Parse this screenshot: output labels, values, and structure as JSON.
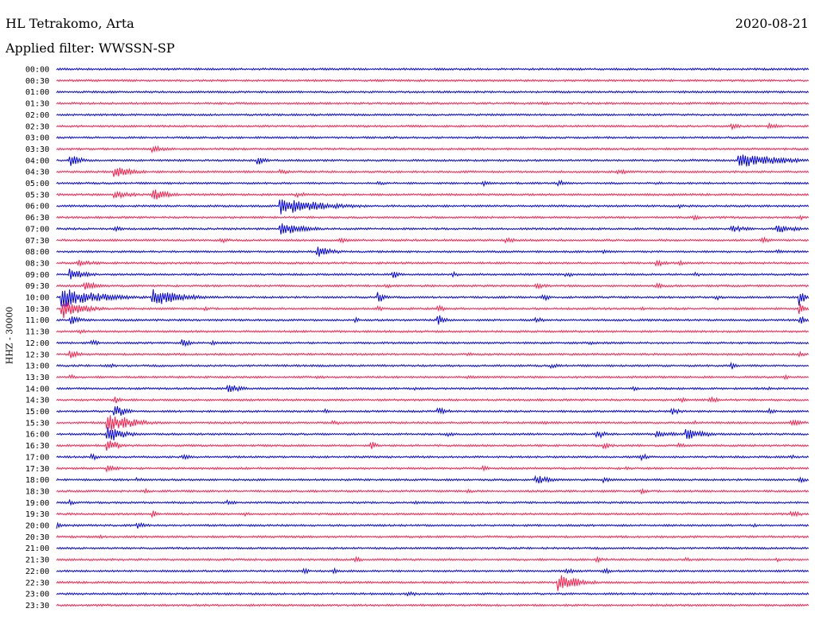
{
  "header": {
    "station": "HL Tetrakomo, Arta",
    "filter": "Applied filter: WWSSN-SP",
    "date": "2020-08-21"
  },
  "axis": {
    "ylabel": "HHZ - 30000"
  },
  "colors": {
    "even_trace": "#0000e0",
    "odd_trace": "#ff1a4a"
  },
  "chart_data": {
    "type": "line",
    "title": "",
    "xlabel": "",
    "ylabel": "HHZ - 30000",
    "traces": [
      {
        "time": "00:00",
        "events": [
          {
            "t": 0.46,
            "a": 0.25,
            "d": 0.02
          },
          {
            "t": 0.51,
            "a": 0.15,
            "d": 0.01
          }
        ]
      },
      {
        "time": "00:30",
        "events": []
      },
      {
        "time": "01:00",
        "events": [
          {
            "t": 0.83,
            "a": 0.35,
            "d": 0.03
          },
          {
            "t": 0.9,
            "a": 0.2,
            "d": 0.02
          }
        ]
      },
      {
        "time": "01:30",
        "events": [
          {
            "t": 0.65,
            "a": 0.35,
            "d": 0.04
          }
        ]
      },
      {
        "time": "02:00",
        "events": []
      },
      {
        "time": "02:30",
        "events": [
          {
            "t": 0.03,
            "a": 0.3,
            "d": 0.01
          },
          {
            "t": 0.8,
            "a": 0.2,
            "d": 0.04
          },
          {
            "t": 0.9,
            "a": 0.9,
            "d": 0.01
          },
          {
            "t": 0.95,
            "a": 0.7,
            "d": 0.02
          }
        ]
      },
      {
        "time": "03:00",
        "events": []
      },
      {
        "time": "03:30",
        "events": [
          {
            "t": 0.13,
            "a": 0.8,
            "d": 0.03
          }
        ]
      },
      {
        "time": "04:00",
        "events": [
          {
            "t": 0.02,
            "a": 1.6,
            "d": 0.02
          },
          {
            "t": 0.27,
            "a": 1.3,
            "d": 0.01
          },
          {
            "t": 0.85,
            "a": 0.3,
            "d": 0.1
          },
          {
            "t": 0.91,
            "a": 1.8,
            "d": 0.1
          }
        ]
      },
      {
        "time": "04:30",
        "events": [
          {
            "t": 0.08,
            "a": 1.3,
            "d": 0.04
          },
          {
            "t": 0.3,
            "a": 0.6,
            "d": 0.02
          },
          {
            "t": 0.75,
            "a": 0.6,
            "d": 0.02
          }
        ]
      },
      {
        "time": "05:00",
        "events": [
          {
            "t": 0.43,
            "a": 0.5,
            "d": 0.02
          },
          {
            "t": 0.57,
            "a": 0.7,
            "d": 0.01
          },
          {
            "t": 0.67,
            "a": 0.8,
            "d": 0.01
          },
          {
            "t": 0.8,
            "a": 0.4,
            "d": 0.01
          }
        ]
      },
      {
        "time": "05:30",
        "events": [
          {
            "t": 0.08,
            "a": 1.0,
            "d": 0.04
          },
          {
            "t": 0.13,
            "a": 1.6,
            "d": 0.03
          },
          {
            "t": 0.32,
            "a": 0.8,
            "d": 0.02
          }
        ]
      },
      {
        "time": "06:00",
        "events": [
          {
            "t": 0.3,
            "a": 2.2,
            "d": 0.09
          },
          {
            "t": 0.83,
            "a": 0.6,
            "d": 0.01
          }
        ]
      },
      {
        "time": "06:30",
        "events": [
          {
            "t": 0.55,
            "a": 0.3,
            "d": 0.05
          },
          {
            "t": 0.85,
            "a": 0.6,
            "d": 0.02
          },
          {
            "t": 0.99,
            "a": 0.6,
            "d": 0.01
          }
        ]
      },
      {
        "time": "07:00",
        "events": [
          {
            "t": 0.08,
            "a": 0.7,
            "d": 0.01
          },
          {
            "t": 0.3,
            "a": 1.6,
            "d": 0.05
          },
          {
            "t": 0.9,
            "a": 0.8,
            "d": 0.04
          },
          {
            "t": 0.96,
            "a": 1.1,
            "d": 0.04
          }
        ]
      },
      {
        "time": "07:30",
        "events": [
          {
            "t": 0.22,
            "a": 0.7,
            "d": 0.02
          },
          {
            "t": 0.38,
            "a": 0.6,
            "d": 0.02
          },
          {
            "t": 0.6,
            "a": 0.6,
            "d": 0.03
          },
          {
            "t": 0.94,
            "a": 0.7,
            "d": 0.02
          }
        ]
      },
      {
        "time": "08:00",
        "events": [
          {
            "t": 0.35,
            "a": 1.3,
            "d": 0.03
          },
          {
            "t": 0.73,
            "a": 0.5,
            "d": 0.01
          },
          {
            "t": 0.96,
            "a": 0.5,
            "d": 0.01
          }
        ]
      },
      {
        "time": "08:30",
        "events": [
          {
            "t": 0.03,
            "a": 0.8,
            "d": 0.04
          },
          {
            "t": 0.8,
            "a": 0.8,
            "d": 0.02
          },
          {
            "t": 0.83,
            "a": 0.6,
            "d": 0.01
          }
        ]
      },
      {
        "time": "09:00",
        "events": [
          {
            "t": 0.02,
            "a": 1.5,
            "d": 0.03
          },
          {
            "t": 0.45,
            "a": 0.9,
            "d": 0.01
          },
          {
            "t": 0.53,
            "a": 0.6,
            "d": 0.01
          },
          {
            "t": 0.68,
            "a": 0.7,
            "d": 0.01
          },
          {
            "t": 0.85,
            "a": 0.5,
            "d": 0.02
          }
        ]
      },
      {
        "time": "09:30",
        "events": [
          {
            "t": 0.04,
            "a": 1.1,
            "d": 0.03
          },
          {
            "t": 0.44,
            "a": 0.6,
            "d": 0.01
          },
          {
            "t": 0.64,
            "a": 0.8,
            "d": 0.02
          },
          {
            "t": 0.8,
            "a": 0.6,
            "d": 0.02
          }
        ]
      },
      {
        "time": "10:00",
        "events": [
          {
            "t": 0.01,
            "a": 2.6,
            "d": 0.08
          },
          {
            "t": 0.13,
            "a": 2.2,
            "d": 0.06
          },
          {
            "t": 0.43,
            "a": 1.3,
            "d": 0.01
          },
          {
            "t": 0.65,
            "a": 0.9,
            "d": 0.01
          },
          {
            "t": 0.88,
            "a": 0.6,
            "d": 0.01
          },
          {
            "t": 0.99,
            "a": 2.2,
            "d": 0.01
          }
        ]
      },
      {
        "time": "10:30",
        "events": [
          {
            "t": 0.01,
            "a": 2.5,
            "d": 0.04
          },
          {
            "t": 0.2,
            "a": 0.5,
            "d": 0.01
          },
          {
            "t": 0.43,
            "a": 0.6,
            "d": 0.01
          },
          {
            "t": 0.51,
            "a": 0.8,
            "d": 0.01
          },
          {
            "t": 0.78,
            "a": 0.5,
            "d": 0.01
          },
          {
            "t": 0.99,
            "a": 1.4,
            "d": 0.01
          }
        ]
      },
      {
        "time": "11:00",
        "events": [
          {
            "t": 0.02,
            "a": 1.2,
            "d": 0.02
          },
          {
            "t": 0.4,
            "a": 0.6,
            "d": 0.01
          },
          {
            "t": 0.51,
            "a": 1.3,
            "d": 0.01
          },
          {
            "t": 0.64,
            "a": 0.6,
            "d": 0.03
          },
          {
            "t": 0.99,
            "a": 1.2,
            "d": 0.01
          }
        ]
      },
      {
        "time": "11:30",
        "events": [
          {
            "t": 0.03,
            "a": 0.6,
            "d": 0.02
          }
        ]
      },
      {
        "time": "12:00",
        "events": [
          {
            "t": 0.05,
            "a": 0.7,
            "d": 0.01
          },
          {
            "t": 0.17,
            "a": 0.9,
            "d": 0.02
          },
          {
            "t": 0.21,
            "a": 0.6,
            "d": 0.01
          },
          {
            "t": 0.71,
            "a": 0.5,
            "d": 0.01
          }
        ]
      },
      {
        "time": "12:30",
        "events": [
          {
            "t": 0.02,
            "a": 1.0,
            "d": 0.02
          },
          {
            "t": 0.55,
            "a": 0.5,
            "d": 0.01
          },
          {
            "t": 0.99,
            "a": 0.6,
            "d": 0.01
          }
        ]
      },
      {
        "time": "13:00",
        "events": [
          {
            "t": 0.07,
            "a": 0.6,
            "d": 0.02
          },
          {
            "t": 0.66,
            "a": 0.6,
            "d": 0.02
          },
          {
            "t": 0.9,
            "a": 0.9,
            "d": 0.01
          }
        ]
      },
      {
        "time": "13:30",
        "events": [
          {
            "t": 0.02,
            "a": 0.6,
            "d": 0.01
          },
          {
            "t": 0.35,
            "a": 0.5,
            "d": 0.02
          },
          {
            "t": 0.55,
            "a": 0.5,
            "d": 0.01
          },
          {
            "t": 0.97,
            "a": 0.5,
            "d": 0.01
          }
        ]
      },
      {
        "time": "14:00",
        "events": [
          {
            "t": 0.23,
            "a": 1.1,
            "d": 0.03
          },
          {
            "t": 0.48,
            "a": 0.4,
            "d": 0.01
          },
          {
            "t": 0.77,
            "a": 0.5,
            "d": 0.01
          },
          {
            "t": 0.95,
            "a": 0.5,
            "d": 0.01
          }
        ]
      },
      {
        "time": "14:30",
        "events": [
          {
            "t": 0.08,
            "a": 0.8,
            "d": 0.01
          },
          {
            "t": 0.83,
            "a": 0.6,
            "d": 0.02
          },
          {
            "t": 0.87,
            "a": 0.8,
            "d": 0.02
          }
        ]
      },
      {
        "time": "15:00",
        "events": [
          {
            "t": 0.08,
            "a": 1.6,
            "d": 0.02
          },
          {
            "t": 0.36,
            "a": 0.6,
            "d": 0.01
          },
          {
            "t": 0.51,
            "a": 0.9,
            "d": 0.02
          },
          {
            "t": 0.82,
            "a": 0.8,
            "d": 0.02
          },
          {
            "t": 0.95,
            "a": 0.7,
            "d": 0.01
          }
        ]
      },
      {
        "time": "15:30",
        "events": [
          {
            "t": 0.07,
            "a": 2.6,
            "d": 0.05
          },
          {
            "t": 0.37,
            "a": 0.6,
            "d": 0.02
          },
          {
            "t": 0.65,
            "a": 0.5,
            "d": 0.01
          },
          {
            "t": 0.85,
            "a": 0.5,
            "d": 0.01
          },
          {
            "t": 0.98,
            "a": 0.7,
            "d": 0.03
          }
        ]
      },
      {
        "time": "16:00",
        "events": [
          {
            "t": 0.07,
            "a": 2.2,
            "d": 0.03
          },
          {
            "t": 0.52,
            "a": 0.6,
            "d": 0.02
          },
          {
            "t": 0.72,
            "a": 1.1,
            "d": 0.02
          },
          {
            "t": 0.8,
            "a": 0.9,
            "d": 0.04
          },
          {
            "t": 0.84,
            "a": 1.4,
            "d": 0.04
          }
        ]
      },
      {
        "time": "16:30",
        "events": [
          {
            "t": 0.07,
            "a": 1.8,
            "d": 0.02
          },
          {
            "t": 0.42,
            "a": 1.1,
            "d": 0.01
          },
          {
            "t": 0.73,
            "a": 0.7,
            "d": 0.02
          },
          {
            "t": 0.83,
            "a": 0.6,
            "d": 0.01
          }
        ]
      },
      {
        "time": "17:00",
        "events": [
          {
            "t": 0.05,
            "a": 0.7,
            "d": 0.01
          },
          {
            "t": 0.17,
            "a": 0.6,
            "d": 0.02
          },
          {
            "t": 0.78,
            "a": 0.9,
            "d": 0.01
          },
          {
            "t": 0.98,
            "a": 0.5,
            "d": 0.01
          }
        ]
      },
      {
        "time": "17:30",
        "events": [
          {
            "t": 0.07,
            "a": 0.9,
            "d": 0.02
          },
          {
            "t": 0.57,
            "a": 0.6,
            "d": 0.01
          },
          {
            "t": 0.76,
            "a": 0.6,
            "d": 0.01
          }
        ]
      },
      {
        "time": "18:00",
        "events": [
          {
            "t": 0.11,
            "a": 0.5,
            "d": 0.01
          },
          {
            "t": 0.64,
            "a": 1.1,
            "d": 0.03
          },
          {
            "t": 0.73,
            "a": 0.7,
            "d": 0.01
          },
          {
            "t": 0.99,
            "a": 0.8,
            "d": 0.01
          }
        ]
      },
      {
        "time": "18:30",
        "events": [
          {
            "t": 0.12,
            "a": 0.6,
            "d": 0.01
          },
          {
            "t": 0.55,
            "a": 0.6,
            "d": 0.01
          },
          {
            "t": 0.78,
            "a": 0.7,
            "d": 0.01
          }
        ]
      },
      {
        "time": "19:00",
        "events": [
          {
            "t": 0.02,
            "a": 0.7,
            "d": 0.01
          },
          {
            "t": 0.23,
            "a": 0.6,
            "d": 0.02
          },
          {
            "t": 0.48,
            "a": 0.5,
            "d": 0.01
          }
        ]
      },
      {
        "time": "19:30",
        "events": [
          {
            "t": 0.13,
            "a": 0.9,
            "d": 0.01
          },
          {
            "t": 0.25,
            "a": 0.5,
            "d": 0.02
          },
          {
            "t": 0.98,
            "a": 0.8,
            "d": 0.02
          }
        ]
      },
      {
        "time": "20:00",
        "events": [
          {
            "t": 0.0,
            "a": 0.9,
            "d": 0.01
          },
          {
            "t": 0.11,
            "a": 0.8,
            "d": 0.02
          },
          {
            "t": 0.93,
            "a": 0.4,
            "d": 0.01
          }
        ]
      },
      {
        "time": "20:30",
        "events": [
          {
            "t": 0.06,
            "a": 0.4,
            "d": 0.02
          }
        ]
      },
      {
        "time": "21:00",
        "events": []
      },
      {
        "time": "21:30",
        "events": [
          {
            "t": 0.4,
            "a": 0.6,
            "d": 0.02
          },
          {
            "t": 0.72,
            "a": 0.7,
            "d": 0.02
          },
          {
            "t": 0.84,
            "a": 0.5,
            "d": 0.01
          },
          {
            "t": 0.96,
            "a": 0.5,
            "d": 0.01
          }
        ]
      },
      {
        "time": "22:00",
        "events": [
          {
            "t": 0.33,
            "a": 0.8,
            "d": 0.01
          },
          {
            "t": 0.37,
            "a": 0.6,
            "d": 0.01
          },
          {
            "t": 0.68,
            "a": 0.7,
            "d": 0.02
          },
          {
            "t": 0.73,
            "a": 0.8,
            "d": 0.01
          }
        ]
      },
      {
        "time": "22:30",
        "events": [
          {
            "t": 0.67,
            "a": 2.2,
            "d": 0.04
          }
        ]
      },
      {
        "time": "23:00",
        "events": [
          {
            "t": 0.47,
            "a": 0.7,
            "d": 0.02
          }
        ]
      },
      {
        "time": "23:30",
        "events": []
      }
    ]
  }
}
